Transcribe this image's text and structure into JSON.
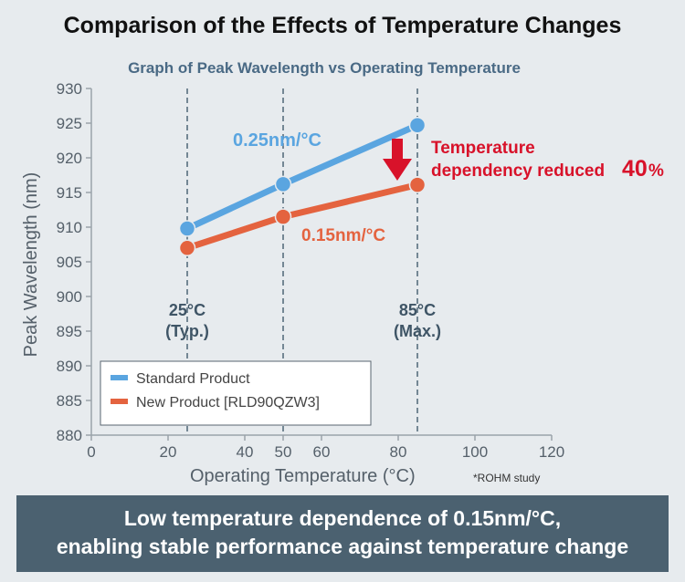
{
  "title": "Comparison of the Effects of Temperature Changes",
  "chart_data": {
    "type": "line",
    "title": "Graph of Peak Wavelength vs Operating Temperature",
    "xlabel": "Operating Temperature (°C)",
    "ylabel": "Peak Wavelength (nm)",
    "xlim": [
      0,
      120
    ],
    "ylim": [
      880,
      930
    ],
    "x_ticks": [
      "0",
      "20",
      "40",
      "50",
      "60",
      "80",
      "100",
      "120"
    ],
    "y_ticks": [
      "880",
      "885",
      "890",
      "895",
      "900",
      "905",
      "910",
      "915",
      "920",
      "925",
      "930"
    ],
    "x": [
      25,
      50,
      85
    ],
    "series": [
      {
        "name": "Standard Product",
        "values": [
          909.8,
          916.2,
          924.7
        ],
        "color": "#5aa5e0",
        "rate_label": "0.25nm/°C"
      },
      {
        "name": "New Product [RLD90QZW3]",
        "values": [
          907.0,
          911.5,
          916.1
        ],
        "color": "#e4633f",
        "rate_label": "0.15nm/°C"
      }
    ],
    "reference_lines": [
      {
        "x": 25,
        "label_line1": "25°C",
        "label_line2": "(Typ.)"
      },
      {
        "x": 50
      },
      {
        "x": 85,
        "label_line1": "85°C",
        "label_line2": "(Max.)"
      }
    ],
    "annotation": {
      "line1": "Temperature",
      "line2": "dependency reduced",
      "value": "40",
      "unit": "%",
      "color": "#d8122a"
    },
    "note": "*ROHM study",
    "legend_position": "bottom-left",
    "grid": false
  },
  "footer": {
    "line1": "Low temperature dependence of 0.15nm/°C,",
    "line2": "enabling stable performance against temperature change"
  }
}
